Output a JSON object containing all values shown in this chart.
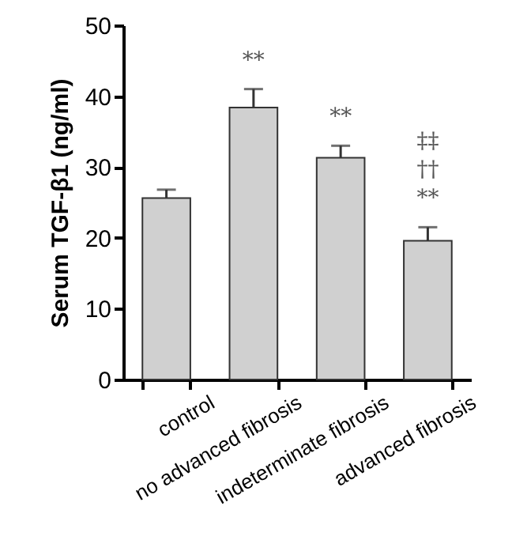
{
  "chart_data": {
    "type": "bar",
    "ylabel": "Serum TGF-β1 (ng/ml)",
    "categories": [
      "control",
      "no advanced fibrosis",
      "indeterminate fibrosis",
      "advanced fibrosis"
    ],
    "values": [
      25.6,
      38.4,
      31.3,
      19.6
    ],
    "errors": [
      1.2,
      2.6,
      1.7,
      1.9
    ],
    "color": "#d0d0d0",
    "ylim": [
      0,
      50
    ],
    "yticks": [
      0,
      10,
      20,
      30,
      40,
      50
    ],
    "grid": false,
    "annotations": [
      "**",
      "**",
      "**",
      "††",
      "‡‡"
    ]
  }
}
